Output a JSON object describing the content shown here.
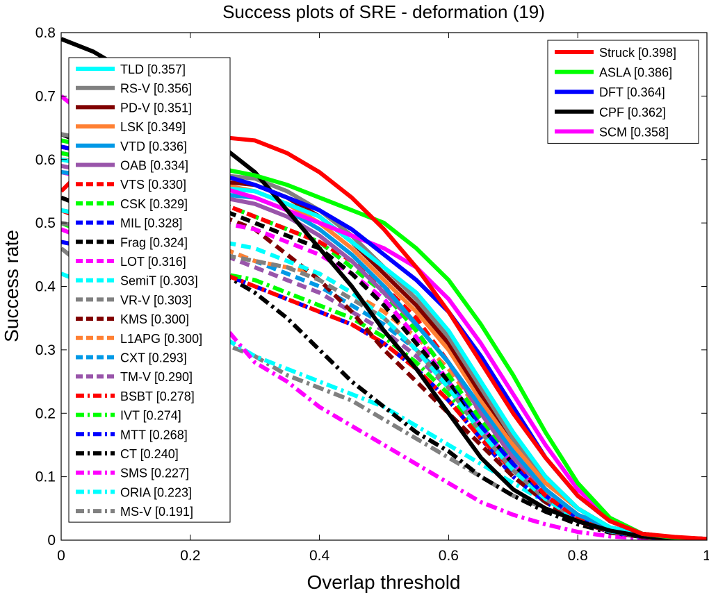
{
  "chart_data": {
    "type": "line",
    "title": "Success plots of SRE - deformation (19)",
    "xlabel": "Overlap threshold",
    "ylabel": "Success rate",
    "xlim": [
      0,
      1
    ],
    "ylim": [
      0,
      0.8
    ],
    "x_ticks": [
      "0",
      "0.2",
      "0.4",
      "0.6",
      "0.8",
      "1"
    ],
    "y_ticks": [
      "0",
      "0.1",
      "0.2",
      "0.3",
      "0.4",
      "0.5",
      "0.6",
      "0.7",
      "0.8"
    ],
    "grid": false,
    "legends": [
      {
        "placement": "top-right",
        "entries": [
          {
            "name": "Struck [0.398]",
            "color": "#ff0000",
            "style": "solid"
          },
          {
            "name": "ASLA [0.386]",
            "color": "#00ff00",
            "style": "solid"
          },
          {
            "name": "DFT [0.364]",
            "color": "#0000ff",
            "style": "solid"
          },
          {
            "name": "CPF [0.362]",
            "color": "#000000",
            "style": "solid"
          },
          {
            "name": "SCM [0.358]",
            "color": "#ff00ff",
            "style": "solid"
          }
        ]
      },
      {
        "placement": "top-left",
        "entries": [
          {
            "name": "TLD [0.357]",
            "color": "#00ffff",
            "style": "solid"
          },
          {
            "name": "RS-V [0.356]",
            "color": "#808080",
            "style": "solid"
          },
          {
            "name": "PD-V [0.351]",
            "color": "#800000",
            "style": "solid"
          },
          {
            "name": "LSK [0.349]",
            "color": "#ff8033",
            "style": "solid"
          },
          {
            "name": "VTD [0.336]",
            "color": "#0099e6",
            "style": "solid"
          },
          {
            "name": "OAB [0.334]",
            "color": "#9955aa",
            "style": "solid"
          },
          {
            "name": "VTS [0.330]",
            "color": "#ff0000",
            "style": "dash"
          },
          {
            "name": "CSK [0.329]",
            "color": "#00ff00",
            "style": "dash"
          },
          {
            "name": "MIL [0.328]",
            "color": "#0000ff",
            "style": "dash"
          },
          {
            "name": "Frag [0.324]",
            "color": "#000000",
            "style": "dash"
          },
          {
            "name": "LOT [0.316]",
            "color": "#ff00ff",
            "style": "dash"
          },
          {
            "name": "SemiT [0.303]",
            "color": "#00ffff",
            "style": "dash"
          },
          {
            "name": "VR-V [0.303]",
            "color": "#808080",
            "style": "dash"
          },
          {
            "name": "KMS [0.300]",
            "color": "#800000",
            "style": "dash"
          },
          {
            "name": "L1APG [0.300]",
            "color": "#ff8033",
            "style": "dash"
          },
          {
            "name": "CXT [0.293]",
            "color": "#0099e6",
            "style": "dash"
          },
          {
            "name": "TM-V [0.290]",
            "color": "#9955aa",
            "style": "dash"
          },
          {
            "name": "BSBT [0.278]",
            "color": "#ff0000",
            "style": "dashdot"
          },
          {
            "name": "IVT [0.274]",
            "color": "#00ff00",
            "style": "dashdot"
          },
          {
            "name": "MTT [0.268]",
            "color": "#0000ff",
            "style": "dashdot"
          },
          {
            "name": "CT [0.240]",
            "color": "#000000",
            "style": "dashdot"
          },
          {
            "name": "SMS [0.227]",
            "color": "#ff00ff",
            "style": "dashdot"
          },
          {
            "name": "ORIA [0.223]",
            "color": "#00ffff",
            "style": "dashdot"
          },
          {
            "name": "MS-V [0.191]",
            "color": "#808080",
            "style": "dashdot"
          }
        ]
      }
    ],
    "x": [
      0,
      0.05,
      0.1,
      0.15,
      0.2,
      0.25,
      0.3,
      0.35,
      0.4,
      0.45,
      0.5,
      0.55,
      0.6,
      0.65,
      0.7,
      0.75,
      0.8,
      0.85,
      0.9,
      0.95,
      1
    ],
    "series": [
      {
        "name": "Struck [0.398]",
        "color": "#ff0000",
        "style": "solid",
        "width": 6,
        "values": [
          0.55,
          0.6,
          0.62,
          0.63,
          0.63,
          0.635,
          0.63,
          0.61,
          0.58,
          0.54,
          0.49,
          0.43,
          0.36,
          0.28,
          0.2,
          0.13,
          0.07,
          0.03,
          0.01,
          0.005,
          0.002
        ]
      },
      {
        "name": "ASLA [0.386]",
        "color": "#00ff00",
        "style": "solid",
        "width": 6,
        "values": [
          0.63,
          0.62,
          0.61,
          0.6,
          0.59,
          0.585,
          0.575,
          0.56,
          0.54,
          0.52,
          0.5,
          0.46,
          0.41,
          0.34,
          0.26,
          0.17,
          0.09,
          0.035,
          0.01,
          0.004,
          0.002
        ]
      },
      {
        "name": "DFT [0.364]",
        "color": "#0000ff",
        "style": "solid",
        "width": 6,
        "values": [
          0.62,
          0.61,
          0.6,
          0.59,
          0.58,
          0.575,
          0.56,
          0.54,
          0.52,
          0.49,
          0.45,
          0.41,
          0.36,
          0.29,
          0.21,
          0.13,
          0.07,
          0.03,
          0.01,
          0.004,
          0.002
        ]
      },
      {
        "name": "CPF [0.362]",
        "color": "#000000",
        "style": "solid",
        "width": 6,
        "values": [
          0.79,
          0.77,
          0.74,
          0.7,
          0.66,
          0.62,
          0.58,
          0.52,
          0.46,
          0.4,
          0.33,
          0.27,
          0.2,
          0.13,
          0.08,
          0.05,
          0.03,
          0.015,
          0.006,
          0.003,
          0.001
        ]
      },
      {
        "name": "SCM [0.358]",
        "color": "#ff00ff",
        "style": "solid",
        "width": 6,
        "values": [
          0.7,
          0.66,
          0.62,
          0.59,
          0.57,
          0.555,
          0.54,
          0.52,
          0.5,
          0.48,
          0.46,
          0.43,
          0.38,
          0.31,
          0.23,
          0.15,
          0.08,
          0.035,
          0.01,
          0.004,
          0.002
        ]
      },
      {
        "name": "TLD [0.357]",
        "color": "#00ffff",
        "style": "solid",
        "width": 6,
        "values": [
          0.6,
          0.59,
          0.58,
          0.57,
          0.56,
          0.555,
          0.55,
          0.53,
          0.51,
          0.47,
          0.43,
          0.39,
          0.33,
          0.25,
          0.17,
          0.1,
          0.05,
          0.02,
          0.01,
          0.004,
          0.002
        ]
      },
      {
        "name": "RS-V [0.356]",
        "color": "#808080",
        "style": "solid",
        "width": 6,
        "values": [
          0.64,
          0.63,
          0.62,
          0.6,
          0.58,
          0.575,
          0.57,
          0.55,
          0.52,
          0.48,
          0.43,
          0.38,
          0.32,
          0.24,
          0.16,
          0.1,
          0.05,
          0.02,
          0.01,
          0.004,
          0.002
        ]
      },
      {
        "name": "PD-V [0.351]",
        "color": "#800000",
        "style": "solid",
        "width": 6,
        "values": [
          0.62,
          0.61,
          0.6,
          0.585,
          0.57,
          0.565,
          0.56,
          0.54,
          0.51,
          0.47,
          0.42,
          0.37,
          0.31,
          0.23,
          0.16,
          0.1,
          0.05,
          0.02,
          0.01,
          0.004,
          0.002
        ]
      },
      {
        "name": "LSK [0.349]",
        "color": "#ff8033",
        "style": "solid",
        "width": 6,
        "values": [
          0.6,
          0.595,
          0.59,
          0.58,
          0.57,
          0.56,
          0.55,
          0.53,
          0.5,
          0.46,
          0.41,
          0.36,
          0.3,
          0.22,
          0.15,
          0.09,
          0.05,
          0.02,
          0.01,
          0.004,
          0.002
        ]
      },
      {
        "name": "VTD [0.336]",
        "color": "#0099e6",
        "style": "solid",
        "width": 6,
        "values": [
          0.58,
          0.575,
          0.57,
          0.56,
          0.55,
          0.545,
          0.54,
          0.52,
          0.49,
          0.45,
          0.4,
          0.34,
          0.28,
          0.21,
          0.14,
          0.08,
          0.04,
          0.02,
          0.01,
          0.004,
          0.002
        ]
      },
      {
        "name": "OAB [0.334]",
        "color": "#9955aa",
        "style": "solid",
        "width": 6,
        "values": [
          0.59,
          0.58,
          0.57,
          0.56,
          0.55,
          0.54,
          0.53,
          0.51,
          0.48,
          0.44,
          0.39,
          0.34,
          0.28,
          0.2,
          0.13,
          0.08,
          0.04,
          0.02,
          0.01,
          0.004,
          0.002
        ]
      },
      {
        "name": "VTS [0.330]",
        "color": "#ff0000",
        "style": "dash",
        "width": 6,
        "values": [
          0.62,
          0.61,
          0.6,
          0.58,
          0.56,
          0.53,
          0.51,
          0.49,
          0.47,
          0.44,
          0.4,
          0.35,
          0.28,
          0.2,
          0.13,
          0.07,
          0.035,
          0.015,
          0.006,
          0.003,
          0.001
        ]
      },
      {
        "name": "CSK [0.329]",
        "color": "#00ff00",
        "style": "dash",
        "width": 6,
        "values": [
          0.61,
          0.6,
          0.59,
          0.57,
          0.55,
          0.53,
          0.51,
          0.49,
          0.47,
          0.43,
          0.39,
          0.33,
          0.26,
          0.19,
          0.13,
          0.08,
          0.04,
          0.02,
          0.008,
          0.003,
          0.001
        ]
      },
      {
        "name": "MIL [0.328]",
        "color": "#0000ff",
        "style": "dash",
        "width": 6,
        "values": [
          0.61,
          0.6,
          0.59,
          0.57,
          0.55,
          0.53,
          0.51,
          0.49,
          0.47,
          0.43,
          0.39,
          0.33,
          0.26,
          0.18,
          0.12,
          0.07,
          0.035,
          0.015,
          0.006,
          0.003,
          0.001
        ]
      },
      {
        "name": "Frag [0.324]",
        "color": "#000000",
        "style": "dash",
        "width": 6,
        "values": [
          0.64,
          0.62,
          0.6,
          0.58,
          0.55,
          0.52,
          0.5,
          0.48,
          0.46,
          0.42,
          0.37,
          0.31,
          0.25,
          0.18,
          0.12,
          0.07,
          0.035,
          0.015,
          0.006,
          0.003,
          0.001
        ]
      },
      {
        "name": "LOT [0.316]",
        "color": "#ff00ff",
        "style": "dash",
        "width": 6,
        "values": [
          0.58,
          0.57,
          0.56,
          0.54,
          0.52,
          0.5,
          0.49,
          0.47,
          0.45,
          0.42,
          0.38,
          0.32,
          0.25,
          0.18,
          0.12,
          0.07,
          0.035,
          0.015,
          0.006,
          0.003,
          0.001
        ]
      },
      {
        "name": "SemiT [0.303]",
        "color": "#00ffff",
        "style": "dash",
        "width": 6,
        "values": [
          0.52,
          0.51,
          0.5,
          0.49,
          0.48,
          0.47,
          0.46,
          0.44,
          0.42,
          0.39,
          0.35,
          0.3,
          0.24,
          0.17,
          0.11,
          0.065,
          0.032,
          0.014,
          0.006,
          0.003,
          0.001
        ]
      },
      {
        "name": "VR-V [0.303]",
        "color": "#808080",
        "style": "dash",
        "width": 6,
        "values": [
          0.5,
          0.49,
          0.48,
          0.47,
          0.46,
          0.45,
          0.44,
          0.43,
          0.41,
          0.38,
          0.35,
          0.3,
          0.24,
          0.17,
          0.11,
          0.065,
          0.032,
          0.014,
          0.006,
          0.003,
          0.001
        ]
      },
      {
        "name": "KMS [0.300]",
        "color": "#800000",
        "style": "dash",
        "width": 6,
        "values": [
          0.58,
          0.57,
          0.56,
          0.545,
          0.53,
          0.51,
          0.49,
          0.45,
          0.41,
          0.36,
          0.3,
          0.25,
          0.2,
          0.15,
          0.1,
          0.06,
          0.03,
          0.013,
          0.005,
          0.002,
          0.001
        ]
      },
      {
        "name": "L1APG [0.300]",
        "color": "#ff8033",
        "style": "dash",
        "width": 6,
        "values": [
          0.52,
          0.51,
          0.5,
          0.49,
          0.48,
          0.46,
          0.44,
          0.43,
          0.42,
          0.39,
          0.36,
          0.32,
          0.27,
          0.2,
          0.13,
          0.075,
          0.036,
          0.015,
          0.006,
          0.003,
          0.001
        ]
      },
      {
        "name": "CXT [0.293]",
        "color": "#0099e6",
        "style": "dash",
        "width": 6,
        "values": [
          0.52,
          0.51,
          0.5,
          0.49,
          0.48,
          0.46,
          0.44,
          0.42,
          0.4,
          0.37,
          0.34,
          0.3,
          0.25,
          0.18,
          0.12,
          0.07,
          0.035,
          0.015,
          0.006,
          0.003,
          0.001
        ]
      },
      {
        "name": "TM-V [0.290]",
        "color": "#9955aa",
        "style": "dash",
        "width": 6,
        "values": [
          0.5,
          0.49,
          0.48,
          0.47,
          0.46,
          0.45,
          0.43,
          0.41,
          0.39,
          0.36,
          0.33,
          0.29,
          0.24,
          0.18,
          0.12,
          0.07,
          0.035,
          0.015,
          0.006,
          0.003,
          0.001
        ]
      },
      {
        "name": "BSBT [0.278]",
        "color": "#ff0000",
        "style": "dashdot",
        "width": 6,
        "values": [
          0.52,
          0.5,
          0.48,
          0.46,
          0.44,
          0.42,
          0.4,
          0.38,
          0.36,
          0.34,
          0.31,
          0.27,
          0.22,
          0.16,
          0.11,
          0.065,
          0.032,
          0.014,
          0.006,
          0.003,
          0.001
        ]
      },
      {
        "name": "IVT [0.274]",
        "color": "#00ff00",
        "style": "dashdot",
        "width": 6,
        "values": [
          0.5,
          0.48,
          0.46,
          0.44,
          0.43,
          0.42,
          0.41,
          0.39,
          0.37,
          0.35,
          0.32,
          0.28,
          0.23,
          0.17,
          0.11,
          0.065,
          0.032,
          0.014,
          0.006,
          0.003,
          0.001
        ]
      },
      {
        "name": "MTT [0.268]",
        "color": "#0000ff",
        "style": "dashdot",
        "width": 6,
        "values": [
          0.47,
          0.46,
          0.45,
          0.44,
          0.43,
          0.42,
          0.4,
          0.38,
          0.36,
          0.34,
          0.31,
          0.27,
          0.22,
          0.16,
          0.1,
          0.06,
          0.03,
          0.013,
          0.005,
          0.002,
          0.001
        ]
      },
      {
        "name": "CT [0.240]",
        "color": "#000000",
        "style": "dashdot",
        "width": 6,
        "values": [
          0.54,
          0.52,
          0.5,
          0.48,
          0.45,
          0.42,
          0.39,
          0.35,
          0.3,
          0.25,
          0.21,
          0.17,
          0.14,
          0.1,
          0.07,
          0.045,
          0.025,
          0.012,
          0.005,
          0.002,
          0.001
        ]
      },
      {
        "name": "SMS [0.227]",
        "color": "#ff00ff",
        "style": "dashdot",
        "width": 6,
        "values": [
          0.49,
          0.47,
          0.45,
          0.42,
          0.39,
          0.34,
          0.28,
          0.25,
          0.21,
          0.18,
          0.15,
          0.12,
          0.09,
          0.06,
          0.04,
          0.025,
          0.013,
          0.006,
          0.003,
          0.001,
          0.0
        ]
      },
      {
        "name": "ORIA [0.223]",
        "color": "#00ffff",
        "style": "dashdot",
        "width": 6,
        "values": [
          0.42,
          0.4,
          0.39,
          0.37,
          0.35,
          0.32,
          0.29,
          0.27,
          0.25,
          0.23,
          0.21,
          0.18,
          0.15,
          0.12,
          0.09,
          0.06,
          0.035,
          0.016,
          0.007,
          0.003,
          0.001
        ]
      },
      {
        "name": "MS-V [0.191]",
        "color": "#808080",
        "style": "dashdot",
        "width": 6,
        "values": [
          0.46,
          0.42,
          0.38,
          0.35,
          0.33,
          0.31,
          0.29,
          0.26,
          0.24,
          0.22,
          0.19,
          0.16,
          0.13,
          0.1,
          0.07,
          0.05,
          0.03,
          0.015,
          0.006,
          0.003,
          0.001
        ]
      }
    ]
  }
}
